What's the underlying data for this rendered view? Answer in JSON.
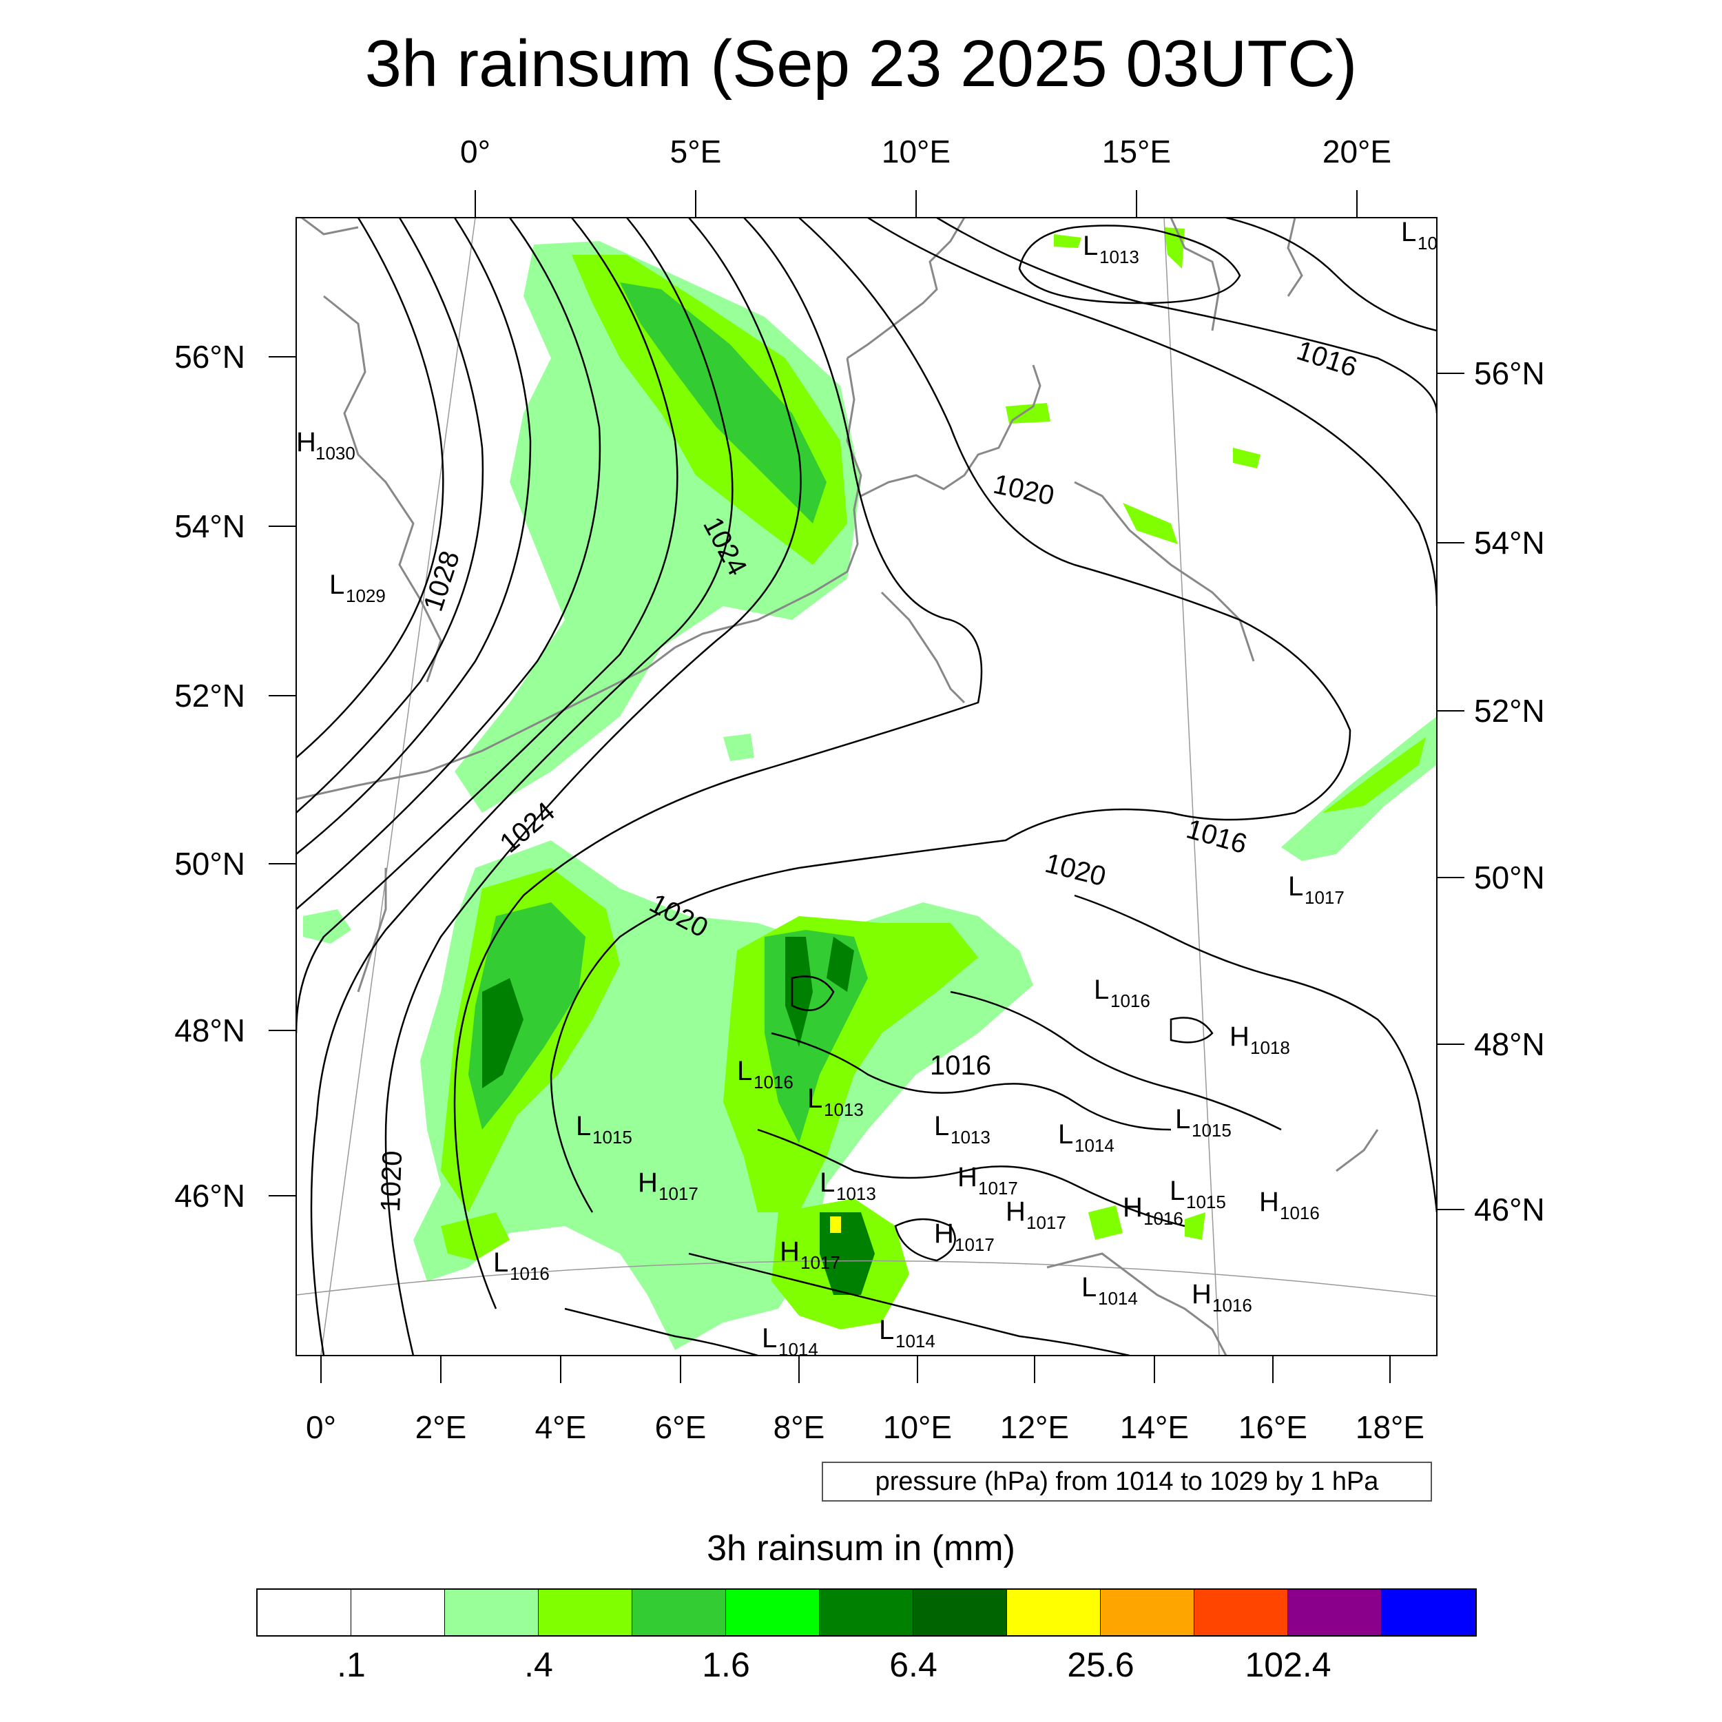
{
  "title": "3h rainsum (Sep 23 2025 03UTC)",
  "map": {
    "top_lon_labels": [
      "0°",
      "5°E",
      "10°E",
      "15°E",
      "20°E"
    ],
    "bottom_lon_labels": [
      "0°",
      "2°E",
      "4°E",
      "6°E",
      "8°E",
      "10°E",
      "12°E",
      "14°E",
      "16°E",
      "18°E"
    ],
    "left_lat_labels": [
      "56°N",
      "54°N",
      "52°N",
      "50°N",
      "48°N",
      "46°N"
    ],
    "right_lat_labels": [
      "56°N",
      "54°N",
      "52°N",
      "50°N",
      "48°N",
      "46°N"
    ],
    "contour_labels": [
      "1028",
      "1024",
      "1024",
      "1020",
      "1020",
      "1020",
      "1020",
      "1016",
      "1016"
    ],
    "centers": [
      {
        "type": "H",
        "value": "1030"
      },
      {
        "type": "L",
        "value": "1029"
      },
      {
        "type": "L",
        "value": "1013"
      },
      {
        "type": "L",
        "value": "10"
      },
      {
        "type": "L",
        "value": "1017"
      },
      {
        "type": "L",
        "value": "1016"
      },
      {
        "type": "H",
        "value": "1018"
      },
      {
        "type": "L",
        "value": "1016"
      },
      {
        "type": "L",
        "value": "1013"
      },
      {
        "type": "L",
        "value": "1015"
      },
      {
        "type": "L",
        "value": "1013"
      },
      {
        "type": "L",
        "value": "1014"
      },
      {
        "type": "L",
        "value": "1015"
      },
      {
        "type": "H",
        "value": "1017"
      },
      {
        "type": "L",
        "value": "1013"
      },
      {
        "type": "H",
        "value": "1017"
      },
      {
        "type": "H",
        "value": "1017"
      },
      {
        "type": "H",
        "value": "1016"
      },
      {
        "type": "L",
        "value": "1015"
      },
      {
        "type": "H",
        "value": "1016"
      },
      {
        "type": "H",
        "value": "1017"
      },
      {
        "type": "H",
        "value": "1017"
      },
      {
        "type": "L",
        "value": "1016"
      },
      {
        "type": "L",
        "value": "1014"
      },
      {
        "type": "H",
        "value": "1016"
      },
      {
        "type": "L",
        "value": "1014"
      },
      {
        "type": "L",
        "value": "1014"
      }
    ],
    "colors": {
      "land_outline": "#888888",
      "contour": "#000000"
    }
  },
  "contour_info": "pressure (hPa) from 1014 to 1029 by 1 hPa",
  "legend": {
    "title": "3h rainsum in (mm)",
    "colors": [
      "#ffffff",
      "#ffffff",
      "#99ff99",
      "#80ff00",
      "#33cc33",
      "#00ff00",
      "#008000",
      "#006400",
      "#ffff00",
      "#ffa500",
      "#ff4500",
      "#8b008b",
      "#0000ff"
    ],
    "labels": [
      ".1",
      ".4",
      "1.6",
      "6.4",
      "25.6",
      "102.4"
    ]
  }
}
